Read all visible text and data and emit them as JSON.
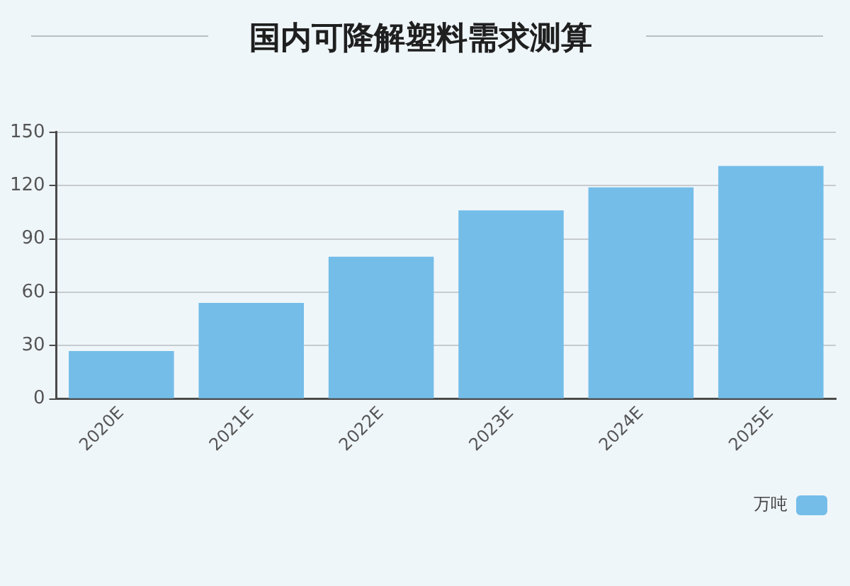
{
  "chart_data": {
    "type": "bar",
    "title": "国内可降解塑料需求测算",
    "categories": [
      "2020E",
      "2021E",
      "2022E",
      "2023E",
      "2024E",
      "2025E"
    ],
    "series": [
      {
        "name": "万吨",
        "color": "#74bde9",
        "values": [
          27,
          54,
          80,
          106,
          119,
          131
        ]
      }
    ],
    "ylim": [
      0,
      150
    ],
    "yticks": [
      0,
      30,
      60,
      90,
      120,
      150
    ],
    "grid": "y",
    "legend": "bottom right"
  }
}
